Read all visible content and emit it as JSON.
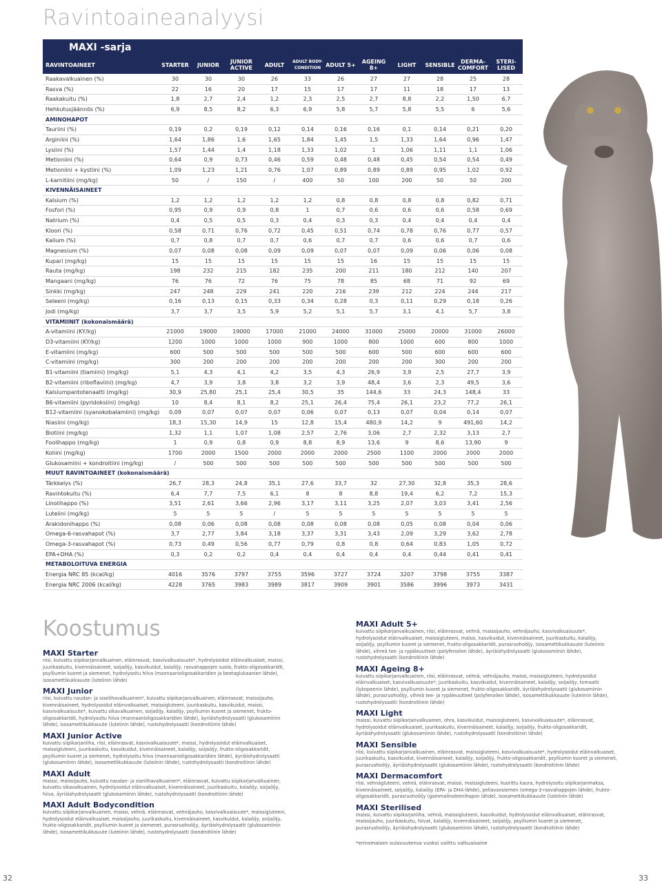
{
  "title": "Ravintoaineanalyysi",
  "table": {
    "series_label": "MAXI -sarja",
    "header": [
      "RAVINTOAINEET",
      "STARTER",
      "JUNIOR",
      "JUNIOR ACTIVE",
      "ADULT",
      "ADULT BODY-CONDITION",
      "ADULT 5+",
      "AGEING 8+",
      "LIGHT",
      "SENSIBLE",
      "DERMA-COMFORT",
      "STERI-LISED"
    ],
    "rows": [
      {
        "label": "Raakavalkuainen (%)",
        "values": [
          "30",
          "30",
          "30",
          "26",
          "33",
          "26",
          "27",
          "27",
          "28",
          "25",
          "28"
        ]
      },
      {
        "label": "Rasva (%)",
        "values": [
          "22",
          "16",
          "20",
          "17",
          "15",
          "17",
          "17",
          "11",
          "18",
          "17",
          "13"
        ]
      },
      {
        "label": "Raakakuitu (%)",
        "values": [
          "1,8",
          "2,7",
          "2,4",
          "1,2",
          "2,3",
          "2,5",
          "2,7",
          "8,8",
          "2,2",
          "1,50",
          "6,7"
        ]
      },
      {
        "label": "Hehkutusjäännös (%)",
        "values": [
          "6,9",
          "8,5",
          "8,2",
          "6,3",
          "6,9",
          "5,8",
          "5,7",
          "5,8",
          "5,5",
          "6",
          "5,6"
        ]
      },
      {
        "section": "AMINOHAPOT"
      },
      {
        "label": "Tauriini (%)",
        "values": [
          "0,19",
          "0,2",
          "0,19",
          "0,12",
          "0,14",
          "0,16",
          "0,16",
          "0,1",
          "0,14",
          "0,21",
          "0,20"
        ]
      },
      {
        "label": "Arginiini (%)",
        "values": [
          "1,64",
          "1,86",
          "1,6",
          "1,65",
          "1,84",
          "1,45",
          "1,5",
          "1,33",
          "1,64",
          "0,96",
          "1,47"
        ]
      },
      {
        "label": "Lysiini (%)",
        "values": [
          "1,57",
          "1,44",
          "1,4",
          "1,18",
          "1,33",
          "1,02",
          "1",
          "1,06",
          "1,11",
          "1,1",
          "1,06"
        ]
      },
      {
        "label": "Metioniini (%)",
        "values": [
          "0,64",
          "0,9",
          "0,73",
          "0,46",
          "0,59",
          "0,48",
          "0,48",
          "0,45",
          "0,54",
          "0,54",
          "0,49"
        ]
      },
      {
        "label": "Metioniini + kystiini (%)",
        "values": [
          "1,09",
          "1,23",
          "1,21",
          "0,76",
          "1,07",
          "0,89",
          "0,89",
          "0,89",
          "0,95",
          "1,02",
          "0,92"
        ]
      },
      {
        "label": "L-karnitiini (mg/kg)",
        "values": [
          "50",
          "/",
          "150",
          "/",
          "400",
          "50",
          "100",
          "200",
          "50",
          "50",
          "200"
        ]
      },
      {
        "section": "KIVENNÄISAINEET"
      },
      {
        "label": "Kalsium (%)",
        "values": [
          "1,2",
          "1,2",
          "1,2",
          "1,2",
          "1,2",
          "0,8",
          "0,8",
          "0,8",
          "0,8",
          "0,82",
          "0,71"
        ]
      },
      {
        "label": "Fosfori (%)",
        "values": [
          "0,95",
          "0,9",
          "0,9",
          "0,8",
          "1",
          "0,7",
          "0,6",
          "0,6",
          "0,6",
          "0,58",
          "0,69"
        ]
      },
      {
        "label": "Natrium (%)",
        "values": [
          "0,4",
          "0,5",
          "0,5",
          "0,3",
          "0,4",
          "0,3",
          "0,3",
          "0,4",
          "0,4",
          "0,4",
          "0,4"
        ]
      },
      {
        "label": "Kloori (%)",
        "values": [
          "0,58",
          "0,71",
          "0,76",
          "0,72",
          "0,45",
          "0,51",
          "0,74",
          "0,78",
          "0,76",
          "0,77",
          "0,57"
        ]
      },
      {
        "label": "Kalium (%)",
        "values": [
          "0,7",
          "0,8",
          "0,7",
          "0,7",
          "0,6",
          "0,7",
          "0,7",
          "0,6",
          "0,6",
          "0,7",
          "0,6"
        ]
      },
      {
        "label": "Magnesium (%)",
        "values": [
          "0,07",
          "0,08",
          "0,08",
          "0,09",
          "0,09",
          "0,07",
          "0,07",
          "0,09",
          "0,06",
          "0,06",
          "0,08"
        ]
      },
      {
        "label": "Kupari (mg/kg)",
        "values": [
          "15",
          "15",
          "15",
          "15",
          "15",
          "15",
          "16",
          "15",
          "15",
          "15",
          "15"
        ]
      },
      {
        "label": "Rauta (mg/kg)",
        "values": [
          "198",
          "232",
          "215",
          "182",
          "235",
          "200",
          "211",
          "180",
          "212",
          "140",
          "207"
        ]
      },
      {
        "label": "Mangaani (mg/kg)",
        "values": [
          "76",
          "76",
          "72",
          "76",
          "75",
          "78",
          "85",
          "68",
          "71",
          "92",
          "69"
        ]
      },
      {
        "label": "Sinkki (mg/kg)",
        "values": [
          "247",
          "248",
          "229",
          "241",
          "220",
          "216",
          "239",
          "212",
          "224",
          "244",
          "217"
        ]
      },
      {
        "label": "Seleeni (mg/kg)",
        "values": [
          "0,16",
          "0,13",
          "0,15",
          "0,33",
          "0,34",
          "0,28",
          "0,3",
          "0,11",
          "0,29",
          "0,18",
          "0,26"
        ]
      },
      {
        "label": "Jodi (mg/kg)",
        "values": [
          "3,7",
          "3,7",
          "3,5",
          "5,9",
          "5,2",
          "5,1",
          "5,7",
          "3,1",
          "4,1",
          "5,7",
          "3,8"
        ]
      },
      {
        "section": "VITAMIINIT (kokonaismäärä)"
      },
      {
        "label": "A-vitamiini (KY/kg)",
        "values": [
          "21000",
          "19000",
          "19000",
          "17000",
          "21000",
          "24000",
          "31000",
          "25000",
          "20000",
          "31000",
          "26000"
        ]
      },
      {
        "label": "D3-vitamiini (KY/kg)",
        "values": [
          "1200",
          "1000",
          "1000",
          "1000",
          "900",
          "1000",
          "800",
          "1000",
          "600",
          "800",
          "1000"
        ]
      },
      {
        "label": "E-vitamiini (mg/kg)",
        "values": [
          "600",
          "500",
          "500",
          "500",
          "500",
          "500",
          "600",
          "500",
          "600",
          "600",
          "600"
        ]
      },
      {
        "label": "C-vitamiini (mg/kg)",
        "values": [
          "300",
          "200",
          "200",
          "200",
          "200",
          "200",
          "200",
          "200",
          "300",
          "200",
          "200"
        ]
      },
      {
        "label": "B1-vitamiini (tiamiini) (mg/kg)",
        "values": [
          "5,1",
          "4,3",
          "4,1",
          "4,2",
          "3,5",
          "4,3",
          "26,9",
          "3,9",
          "2,5",
          "27,7",
          "3,9"
        ]
      },
      {
        "label": "B2-vitamiini (riboflaviini) (mg/kg)",
        "values": [
          "4,7",
          "3,9",
          "3,8",
          "3,8",
          "3,2",
          "3,9",
          "48,4",
          "3,6",
          "2,3",
          "49,5",
          "3,6"
        ]
      },
      {
        "label": "Kalsiumpantotenaatti (mg/kg)",
        "values": [
          "30,9",
          "25,80",
          "25,1",
          "25,4",
          "30,5",
          "35",
          "144,6",
          "33",
          "24,3",
          "148,4",
          "33"
        ]
      },
      {
        "label": "B6-vitamiini (pyridoksiini) (mg/kg)",
        "values": [
          "10",
          "8,4",
          "8,1",
          "8,2",
          "25,1",
          "26,4",
          "75,4",
          "26,1",
          "23,2",
          "77,2",
          "26,1"
        ]
      },
      {
        "label": "B12-vitamiini (syanokobalamiini) (mg/kg)",
        "values": [
          "0,09",
          "0,07",
          "0,07",
          "0,07",
          "0,06",
          "0,07",
          "0,13",
          "0,07",
          "0,04",
          "0,14",
          "0,07"
        ]
      },
      {
        "label": "Niasiini (mg/kg)",
        "values": [
          "18,3",
          "15,30",
          "14,9",
          "15",
          "12,8",
          "15,4",
          "480,9",
          "14,2",
          "9",
          "491,60",
          "14,2"
        ]
      },
      {
        "label": "Biotiini (mg/kg)",
        "values": [
          "1,32",
          "1,1",
          "1,07",
          "1,08",
          "2,57",
          "2,76",
          "3,06",
          "2,7",
          "2,32",
          "3,13",
          "2,7"
        ]
      },
      {
        "label": "Foolihappo (mg/kg)",
        "values": [
          "1",
          "0,9",
          "0,8",
          "0,9",
          "8,8",
          "8,9",
          "13,6",
          "9",
          "8,6",
          "13,90",
          "9"
        ]
      },
      {
        "label": "Koliini (mg/kg)",
        "values": [
          "1700",
          "2000",
          "1500",
          "2000",
          "2000",
          "2000",
          "2500",
          "1100",
          "2000",
          "2000",
          "2000"
        ]
      },
      {
        "label": "Glukosamiini + kondroitiini (mg/kg)",
        "values": [
          "/",
          "500",
          "500",
          "500",
          "500",
          "500",
          "500",
          "500",
          "500",
          "500",
          "500"
        ]
      },
      {
        "section": "MUUT RAVINTOAINEET (kokonaismäärä)"
      },
      {
        "label": "Tärkkelys (%)",
        "values": [
          "26,7",
          "28,3",
          "24,8",
          "35,1",
          "27,6",
          "33,7",
          "32",
          "27,30",
          "32,8",
          "35,3",
          "28,6"
        ]
      },
      {
        "label": "Ravintokuitu (%)",
        "values": [
          "6,4",
          "7,7",
          "7,5",
          "6,1",
          "8",
          "8",
          "8,8",
          "19,4",
          "6,2",
          "7,2",
          "15,3"
        ]
      },
      {
        "label": "Linolihappo (%)",
        "values": [
          "3,51",
          "2,61",
          "3,66",
          "2,96",
          "3,17",
          "3,11",
          "3,25",
          "2,07",
          "3,03",
          "3,41",
          "2,56"
        ]
      },
      {
        "label": "Luteiini (mg/kg)",
        "values": [
          "5",
          "5",
          "5",
          "/",
          "5",
          "5",
          "5",
          "5",
          "5",
          "5",
          "5"
        ]
      },
      {
        "label": "Arakidonihappo (%)",
        "values": [
          "0,08",
          "0,06",
          "0,08",
          "0,08",
          "0,08",
          "0,08",
          "0,08",
          "0,05",
          "0,08",
          "0,04",
          "0,06"
        ]
      },
      {
        "label": "Omega-6-rasvahapot (%)",
        "values": [
          "3,7",
          "2,77",
          "3,84",
          "3,18",
          "3,37",
          "3,31",
          "3,43",
          "2,09",
          "3,29",
          "3,62",
          "2,78"
        ]
      },
      {
        "label": "Omega-3-rasvahapot (%)",
        "values": [
          "0,73",
          "0,49",
          "0,56",
          "0,77",
          "0,79",
          "0,8",
          "0,8",
          "0,64",
          "0,83",
          "1,05",
          "0,72"
        ]
      },
      {
        "label": "EPA+DHA (%)",
        "values": [
          "0,3",
          "0,2",
          "0,2",
          "0,4",
          "0,4",
          "0,4",
          "0,4",
          "0,4",
          "0,44",
          "0,41",
          "0,41"
        ]
      },
      {
        "section": "METABOLOITUVA ENERGIA"
      },
      {
        "label": "Energia NRC 85 (kcal/kg)",
        "values": [
          "4016",
          "3576",
          "3797",
          "3755",
          "3596",
          "3727",
          "3724",
          "3207",
          "3798",
          "3755",
          "3387"
        ]
      },
      {
        "label": "Energia NRC 2006 (kcal/kg)",
        "values": [
          "4228",
          "3765",
          "3983",
          "3989",
          "3817",
          "3909",
          "3901",
          "3586",
          "3996",
          "3973",
          "3431"
        ]
      }
    ]
  },
  "composition": {
    "title": "Koostumus",
    "left": [
      {
        "name": "MAXI Starter",
        "text": "riisi, kuivattu siipikarjanvalkuainen, eläinrasvat, kasvivalkuaisuute*, hydrolysoidut eläinvalkuaiset, maissi, juurikaskuitu, kivennäisaineet, soijaöljy, kasvikuidut, kalaöljy, rasvahappojen suola, frukto-oligosakkaridit, psylliumin kuoret ja siemenet, hydrolysoitu hiiva (mannaanioligosakkaridien ja beetaglukaanien lähde), isosamettikukkauute (luteiinin lähde)"
      },
      {
        "name": "MAXI Junior",
        "text": "riisi, kuivattu naudan- ja sianlihavalkuainen*, kuivattu siipikarjanvalkuainen, eläinrasvat, maissijauho, kivennäisaineet, hydrolysoidut eläinvalkuaiset, maissigluteeni, juurikaskuitu, kasvikuidut, maissi, kasvivalkuaisuute*, kuivattu sikavalkuainen, soijaöljy, kalaöljy, psylliumin kuoret ja siemenet, frukto-oligosakkaridit, hydrolysoitu hiiva (mannaanioligosakkaridien lähde), äyriäishydrolysaatti (glukosamiinin lähde), isosamettikukkauute (luteiinin lähde), rustohydrolysaatti (kondroitiinin lähde)"
      },
      {
        "name": "MAXI Junior Active",
        "text": "kuivattu siipikarjanliha, riisi, eläinrasvat, kasvivalkuaisuute*, maissi, hydrolysoidut eläinvalkuaiset, maissigluteeni, juurikaskuitu, kasvikuidut, kivennäisaineet, kalaöljy, soijaöljy, frukto-oligosakkaridit, psylliumin kuoret ja siemenet, hydrolysoitu hiiva (mannaanioligosakkaridien lähde), äyriäishydrolysaatti (glukosamiinin lähde), isosamettikukkauute (luteiinin lähde), rustohydrolysaatti (kondroitiinin lähde)"
      },
      {
        "name": "MAXI Adult",
        "text": "maissi, maissijauho, kuivattu naudan- ja sianlihavalkuainen*, eläinrasvat, kuivattu siipikarjanvalkuainen, kuivattu sikavalkuainen, hydrolysoidut eläinvalkuaiset, kivennäisaineet, juurikaskuitu, kalaöljy, soijaöljy, hiiva, äyriäishydrolysaatti (glukosamiinin lähde), rustohydrolysaatti (kondroitiinin lähde)"
      },
      {
        "name": "MAXI Adult Bodycondition",
        "text": "kuivattu siipikarjanvalkuainen, maissi, vehnä, eläinrasvat, vehnäjauho, kasvivalkuaisuute*, maissigluteeni, hydrolysoidut eläinvalkuaiset, maissijauho, juurikaskuitu, kivennäisaineet, kasvikuidut, kalaöljy, soijaöljy, frukto-oligosakkaridit, psylliumin kuoret ja siemenet, purasruohoöljy, äyriäishydrolysaatti (glukosamiinin lähde), isosamettikukkauute (luteiinin lähde), rustohydrolysaatti (kondroitiinin lähde)"
      }
    ],
    "right": [
      {
        "name": "MAXI Adult 5+",
        "text": "kuivattu siipikarjanvalkuainen, riisi, eläinrasvat, vehnä, maissijauho, vehnäjauho, kasvivalkuaisuute*, hydrolysoidut eläinvalkuaiset, maissigluteeni, maissi, kasvikuidut, kivennäisaineet, juurikaskuitu, kalaöljy, soijaöljy, psylliumin kuoret ja siemenet, frukto-oligosakkaridit, purasruohoöljy, isosamettikukkauute (luteiinin lähde), vihreä tee- ja rypäleuutteet (polyfenolien lähde), äyriäishydrolysaatti (glukosamiinin lähde), rustohydrolysaatti (kondroitiinin lähde)"
      },
      {
        "name": "MAXI Ageing 8+",
        "text": "kuivattu siipikarjanvalkuainen, riisi, eläinrasvat, vehnä, vehnäjauho, maissi, maissigluteeni, hydrolysoidut eläinvalkuaiset, kasvivalkuaisuute*, juurikaskuitu, kasvikuidut, kivennäisaineet, kalaöljy, soijaöljy, tomaatti (lykopeenin lähde), psylliumin kuoret ja siemenet, frukto-oligosakkaridit, äyriäishydrolysaatti (glukosamiinin lähde), purasruohoöljy, vihreä tee- ja rypäleuutteet (polyfenolien lähde), isosamettikukkauute (luteiinin lähde), rustohydrolysaatti (kondroitiinin lähde)"
      },
      {
        "name": "MAXI Light",
        "text": "maissi, kuivattu siipikarjanvalkuainen, ohra, kasvikuidut, maissigluteeni, kasvivalkuaisuute*, eläinrasvat, hydrolysoidut eläinvalkuaiset, juurikaskuitu, kivennäisaineet, kalaöljy, soijaöljy, frukto-oligosakkaridit, äyriäishydrolysaatti (glukosamiinin lähde), rustohydrolysaatti (kondroitiinin lähde)"
      },
      {
        "name": "MAXI Sensible",
        "text": "riisi, kuivattu siipikarjanvalkuainen, eläinrasvat, maissigluteeni, kasvivalkuaisuute*, hydrolysoidut eläinvalkuaiset, juurikaskuitu, kasvikuidut, kivennäisaineet, kalaöljy, soijaöljy, frukto-oligosakkaridit, psylliumin kuoret ja siemenet, purasruohoöljy, äyriäishydrolysaatti (glukosamiinin lähde), rustohydrolysaatti (kondroitiinin lähde)"
      },
      {
        "name": "MAXI Dermacomfort",
        "text": "riisi, vehnägluteeni, vehnä, eläinrasvat, maissi, maissigluteeni, kuorittu kaura, hydrolysoitu siipikarjanmaksa, kivennäisaineet, soijaöljy, kalaöljy (EPA- ja DHA-lähde), pellavansiemen (omega-3-rasvahappojen lähde), frukto-oligosakkaridit, purasruohoöljy (gammalinoleenihapon lähde), isosamettikukkauute (luteiinin lähde)"
      },
      {
        "name": "MAXI Sterilised",
        "text": "maissi, kuivattu siipikarjanliha, vehnä, maissigluteeni, kasvikuidut, hydrolysoidut eläinvalkuaiset, eläinrasvat, maissijauho, juurikaskuitu, hiivat, kalaöljy, kivennäisaineet, soijaöljy, psylliumin kuoret ja siemenet, purasruohoöljy, äyriäishydrolysaatti (glukosamiinin lähde), rustohydrolysaatti (kondroitiinin lähde)"
      }
    ],
    "footnote": "*erinomaisen sulavuutensa vuoksi valittu valkuaisaine"
  },
  "page_left": "32",
  "page_right": "33"
}
